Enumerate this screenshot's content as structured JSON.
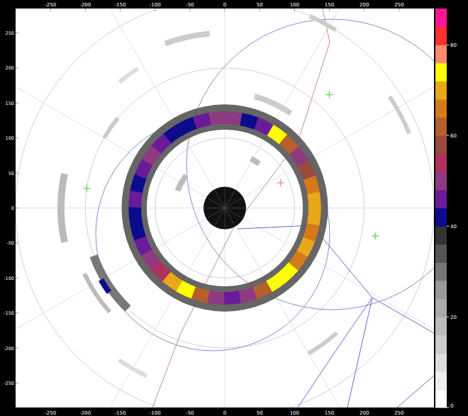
{
  "chart_data": {
    "type": "radar_ppi",
    "xlim": [
      -300,
      300
    ],
    "ylim": [
      -285,
      285
    ],
    "xticks": [
      -250,
      -200,
      -150,
      -100,
      -50,
      0,
      50,
      100,
      150,
      200,
      250
    ],
    "yticks": [
      -250,
      -200,
      -150,
      -100,
      -50,
      0,
      50,
      100,
      150,
      200,
      250
    ],
    "grid": true,
    "range_rings": [
      100,
      200,
      300
    ],
    "colorbar": {
      "range": [
        0,
        88
      ],
      "ticks": [
        0,
        20,
        40,
        60,
        80
      ],
      "colors": [
        "#ffffff",
        "#eeeeee",
        "#dddddd",
        "#cccccc",
        "#bbbbbb",
        "#aaaaaa",
        "#999999",
        "#777777",
        "#555555",
        "#333333",
        "#0b0b8c",
        "#6a1b9a",
        "#8e3a80",
        "#b03060",
        "#9a4a3a",
        "#b5602a",
        "#d47a1a",
        "#e8a81a",
        "#ffff00",
        "#ff8a70",
        "#ff3030",
        "#ff1493"
      ]
    },
    "halo": {
      "r_inner": 112,
      "r_outer": 148,
      "value": 34
    },
    "ring": {
      "start": 0,
      "step": 10,
      "r_inner": 120,
      "r_outer": 138,
      "values": [
        70,
        66,
        58,
        50,
        62,
        72,
        46,
        42,
        48,
        50,
        45,
        43,
        42,
        46,
        49,
        44,
        41,
        47,
        43,
        41,
        46,
        50,
        55,
        70,
        74,
        60,
        48,
        44,
        50,
        62,
        72,
        74,
        66,
        68,
        64,
        71
      ]
    },
    "echoes": [
      {
        "r": 250,
        "start": 95,
        "end": 110,
        "width": 8,
        "value": 14
      },
      {
        "r": 235,
        "start": 122,
        "end": 130,
        "width": 6,
        "value": 10
      },
      {
        "r": 300,
        "start": 58,
        "end": 66,
        "width": 6,
        "value": 12
      },
      {
        "r": 285,
        "start": 22,
        "end": 34,
        "width": 6,
        "value": 14
      },
      {
        "r": 235,
        "start": 168,
        "end": 192,
        "width": 10,
        "value": 18
      },
      {
        "r": 200,
        "start": 200,
        "end": 226,
        "width": 12,
        "value": 30
      },
      {
        "r": 205,
        "start": 210,
        "end": 216,
        "width": 8,
        "value": 42
      },
      {
        "r": 222,
        "start": 205,
        "end": 222,
        "width": 6,
        "value": 16
      },
      {
        "r": 72,
        "start": 140,
        "end": 160,
        "width": 8,
        "value": 16
      },
      {
        "r": 80,
        "start": 52,
        "end": 62,
        "width": 8,
        "value": 18
      },
      {
        "r": 165,
        "start": 55,
        "end": 75,
        "width": 8,
        "value": 14
      },
      {
        "r": 240,
        "start": -60,
        "end": -48,
        "width": 6,
        "value": 12
      },
      {
        "r": 265,
        "start": -125,
        "end": -115,
        "width": 6,
        "value": 10
      },
      {
        "r": 200,
        "start": 140,
        "end": 150,
        "width": 6,
        "value": 12
      }
    ],
    "markers": [
      {
        "x": -198,
        "y": 28,
        "color": "#66dd66"
      },
      {
        "x": 150,
        "y": 162,
        "color": "#66dd66"
      },
      {
        "x": 216,
        "y": -40,
        "color": "#66dd66"
      },
      {
        "x": 80,
        "y": 36,
        "color": "#e89a9a"
      }
    ]
  }
}
